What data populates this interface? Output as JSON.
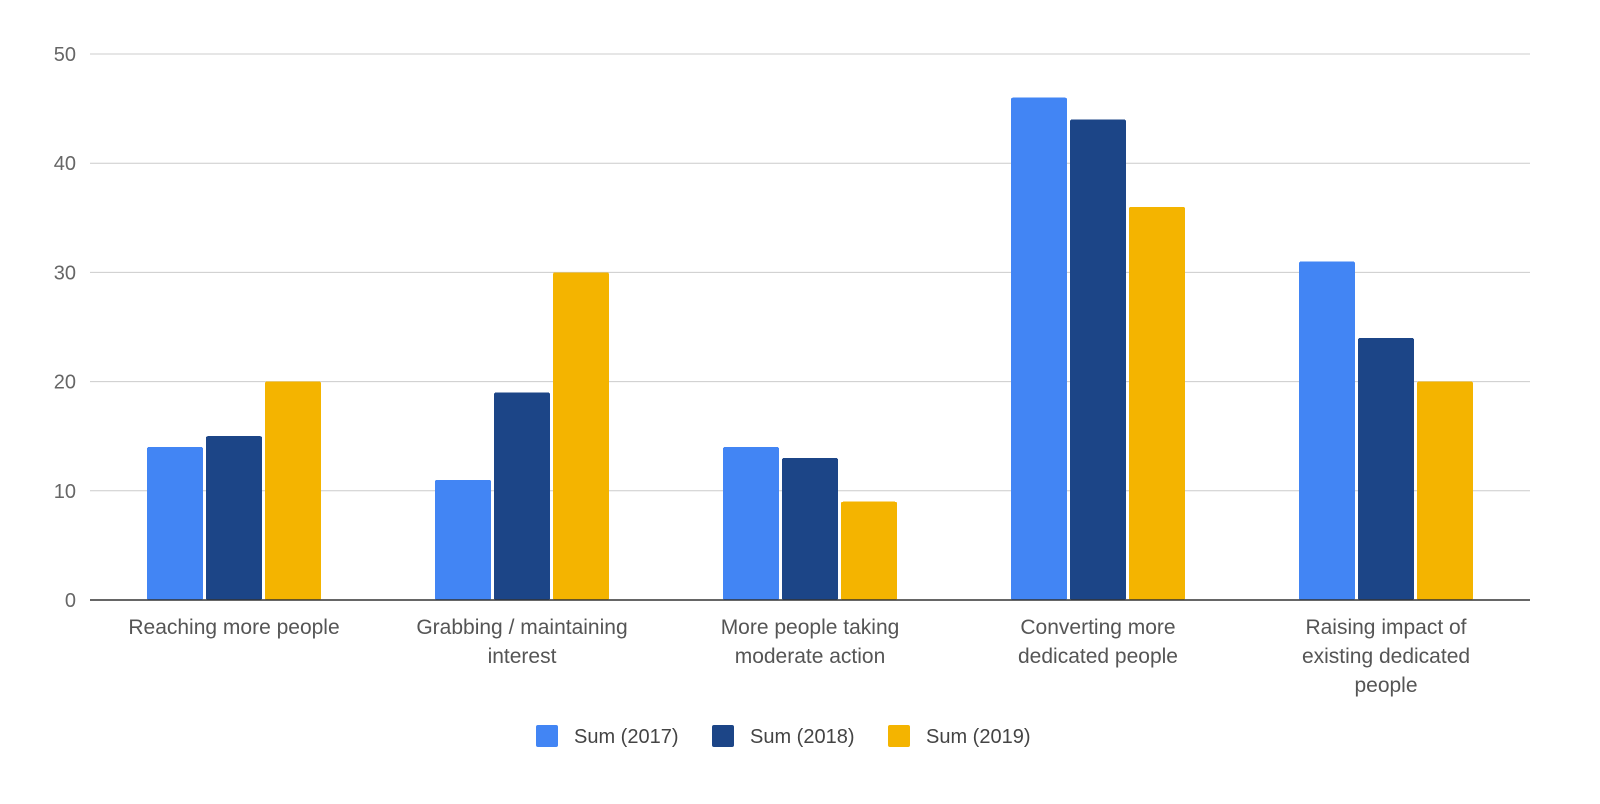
{
  "chart_data": {
    "type": "bar",
    "title": "",
    "xlabel": "",
    "ylabel": "",
    "ylim": [
      0,
      50
    ],
    "y_ticks": [
      0,
      10,
      20,
      30,
      40,
      50
    ],
    "grid": true,
    "legend_position": "bottom",
    "categories": [
      [
        "Reaching more people"
      ],
      [
        "Grabbing / maintaining",
        "interest"
      ],
      [
        "More people taking",
        "moderate action"
      ],
      [
        "Converting more",
        "dedicated people"
      ],
      [
        "Raising impact of",
        "existing dedicated",
        "people"
      ]
    ],
    "series": [
      {
        "name": "Sum (2017)",
        "color": "#4285f4",
        "values": [
          14,
          11,
          14,
          46,
          31
        ]
      },
      {
        "name": "Sum (2018)",
        "color": "#1c4587",
        "values": [
          15,
          19,
          13,
          44,
          24
        ]
      },
      {
        "name": "Sum (2019)",
        "color": "#f4b400",
        "values": [
          20,
          30,
          9,
          36,
          20
        ]
      }
    ]
  }
}
